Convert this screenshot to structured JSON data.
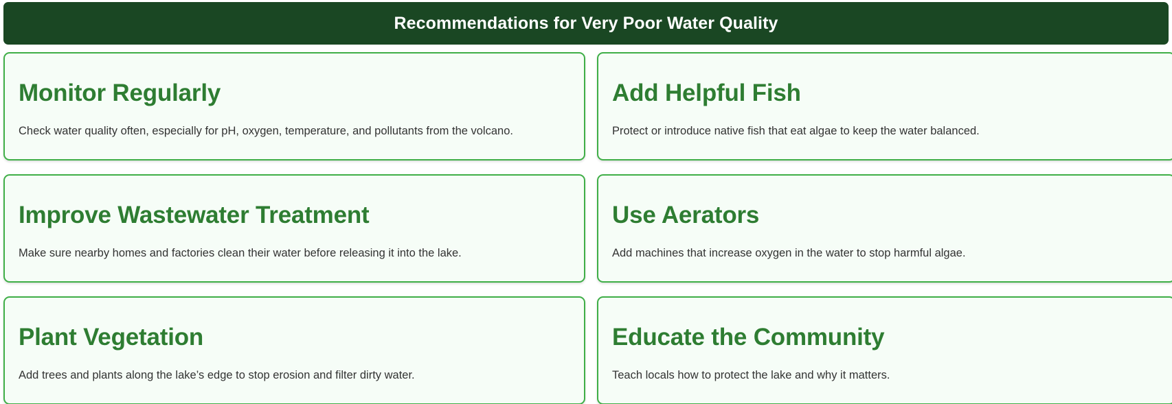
{
  "colors": {
    "header_bg": "#1a4723",
    "title_green": "#2e7d32",
    "card_border": "#3fae47",
    "card_bg": "#f6fdf7",
    "text": "#333333"
  },
  "header": {
    "title": "Recommendations for Very Poor Water Quality"
  },
  "cards": [
    {
      "title": "Monitor Regularly",
      "description": "Check water quality often, especially for pH, oxygen, temperature, and pollutants from the volcano."
    },
    {
      "title": "Add Helpful Fish",
      "description": "Protect or introduce native fish that eat algae to keep the water balanced."
    },
    {
      "title": "Improve Wastewater Treatment",
      "description": "Make sure nearby homes and factories clean their water before releasing it into the lake."
    },
    {
      "title": "Use Aerators",
      "description": "Add machines that increase oxygen in the water to stop harmful algae."
    },
    {
      "title": "Plant Vegetation",
      "description": "Add trees and plants along the lake’s edge to stop erosion and filter dirty water."
    },
    {
      "title": "Educate the Community",
      "description": "Teach locals how to protect the lake and why it matters."
    }
  ]
}
